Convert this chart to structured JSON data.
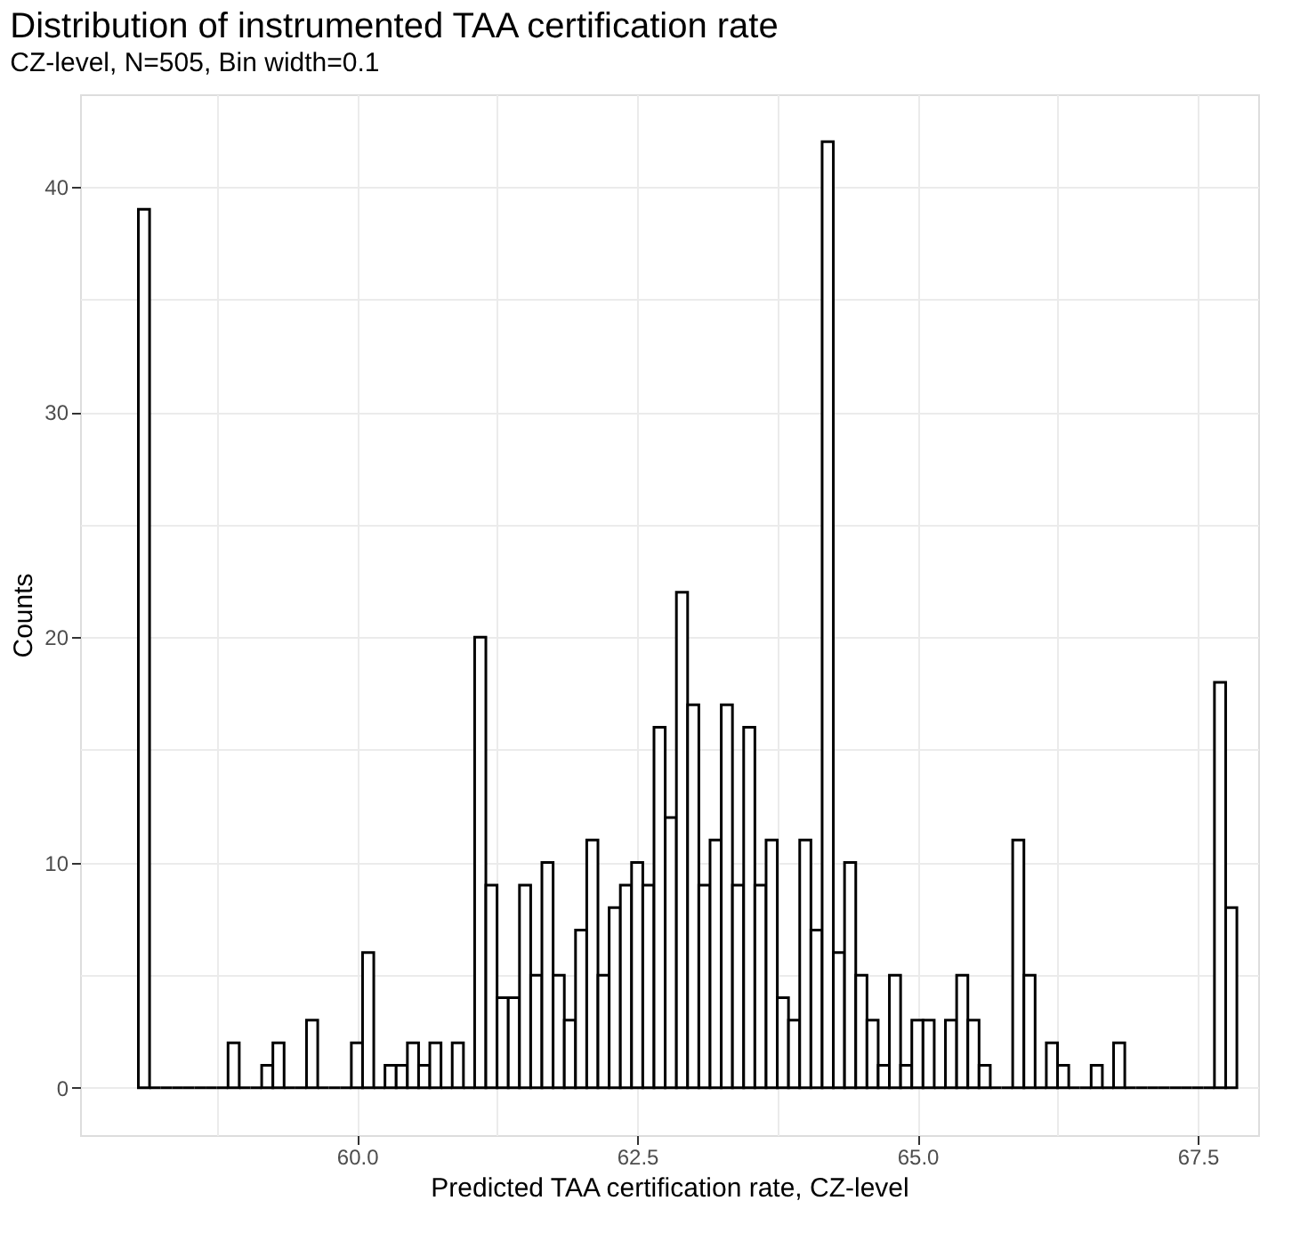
{
  "chart_data": {
    "type": "histogram",
    "title": "Distribution of instrumented TAA certification rate",
    "subtitle": "CZ-level, N=505, Bin width=0.1",
    "xlabel": "Predicted TAA certification rate, CZ-level",
    "ylabel": "Counts",
    "bins": [
      58.05,
      58.15,
      58.25,
      58.35,
      58.45,
      58.55,
      58.65,
      58.75,
      58.85,
      58.95,
      59.05,
      59.15,
      59.25,
      59.35,
      59.45,
      59.55,
      59.65,
      59.75,
      59.85,
      59.95,
      60.05,
      60.15,
      60.25,
      60.35,
      60.45,
      60.55,
      60.65,
      60.75,
      60.85,
      60.95,
      61.05,
      61.15,
      61.25,
      61.35,
      61.45,
      61.55,
      61.65,
      61.75,
      61.85,
      61.95,
      62.05,
      62.15,
      62.25,
      62.35,
      62.45,
      62.55,
      62.65,
      62.75,
      62.85,
      62.95,
      63.05,
      63.15,
      63.25,
      63.35,
      63.45,
      63.55,
      63.65,
      63.75,
      63.85,
      63.95,
      64.05,
      64.15,
      64.25,
      64.35,
      64.45,
      64.55,
      64.65,
      64.75,
      64.85,
      64.95,
      65.05,
      65.15,
      65.25,
      65.35,
      65.45,
      65.55,
      65.65,
      65.75,
      65.85,
      65.95,
      66.05,
      66.15,
      66.25,
      66.35,
      66.45,
      66.55,
      66.65,
      66.75,
      66.85,
      66.95,
      67.05,
      67.15,
      67.25,
      67.35,
      67.45,
      67.55,
      67.65,
      67.75,
      67.85
    ],
    "values": [
      39,
      0,
      0,
      0,
      0,
      0,
      0,
      0,
      2,
      0,
      0,
      1,
      2,
      0,
      0,
      3,
      0,
      0,
      0,
      2,
      6,
      0,
      1,
      1,
      2,
      1,
      2,
      0,
      2,
      0,
      20,
      9,
      4,
      4,
      9,
      5,
      10,
      5,
      3,
      7,
      11,
      5,
      8,
      9,
      10,
      9,
      16,
      12,
      22,
      17,
      9,
      11,
      17,
      9,
      16,
      9,
      11,
      4,
      3,
      11,
      7,
      42,
      6,
      10,
      5,
      3,
      1,
      5,
      1,
      3,
      3,
      0,
      3,
      5,
      3,
      1,
      0,
      0,
      11,
      5,
      0,
      2,
      1,
      0,
      0,
      1,
      0,
      2,
      0,
      0,
      0,
      0,
      0,
      0,
      0,
      0,
      18,
      8
    ],
    "color": "#000000",
    "xlim": [
      57.53,
      68.04
    ],
    "ylim": [
      -2.1,
      44.1
    ],
    "xticks": [
      {
        "value": 58.75,
        "label": null
      },
      {
        "value": 60,
        "label": "60.0"
      },
      {
        "value": 61.25,
        "label": null
      },
      {
        "value": 62.5,
        "label": "62.5"
      },
      {
        "value": 63.75,
        "label": null
      },
      {
        "value": 65,
        "label": "65.0"
      },
      {
        "value": 66.25,
        "label": null
      },
      {
        "value": 67.5,
        "label": "67.5"
      }
    ],
    "yticks": [
      0,
      {
        "value": 5,
        "label": null
      },
      10,
      {
        "value": 15,
        "label": null
      },
      20,
      {
        "value": 25,
        "label": null
      },
      30,
      {
        "value": 35,
        "label": null
      },
      40
    ],
    "grid": true
  }
}
